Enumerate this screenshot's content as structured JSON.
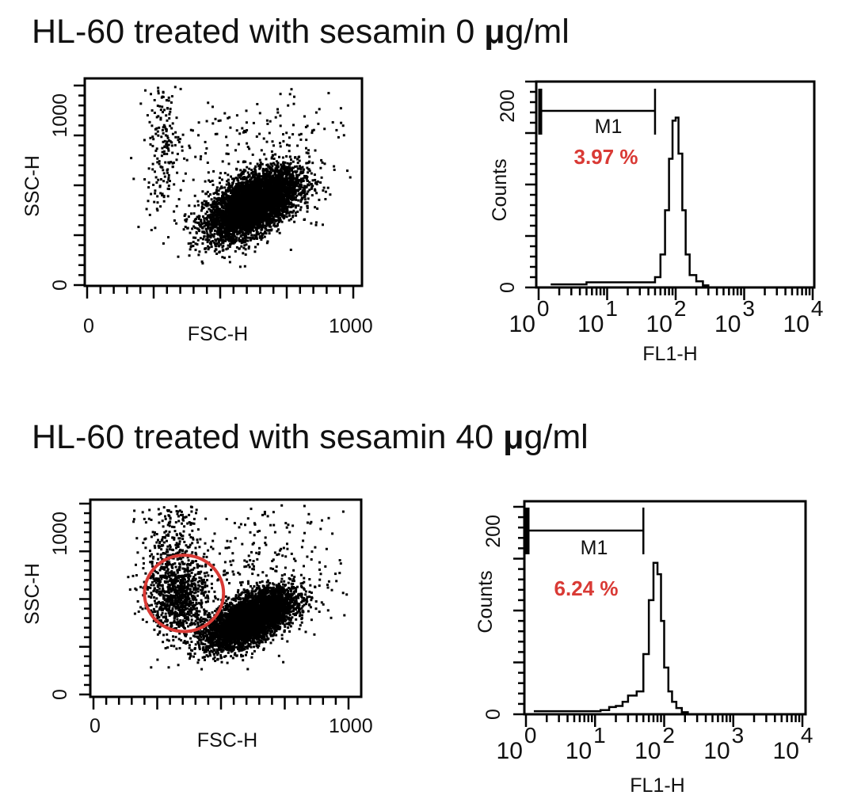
{
  "colors": {
    "ink": "#000000",
    "annotation": "#d93a35"
  },
  "rows": [
    {
      "title_prefix": "HL-60 treated with sesamin  0  ",
      "title_unit_mu": "μ",
      "title_unit_rest": "g/ml"
    },
    {
      "title_prefix": "HL-60 treated with sesamin  40  ",
      "title_unit_mu": "μ",
      "title_unit_rest": "g/ml"
    }
  ],
  "chart_data": [
    {
      "type": "scatter",
      "xlabel": "FSC-H",
      "ylabel": "SSC-H",
      "xlim": [
        0,
        1000
      ],
      "ylim": [
        0,
        1000
      ],
      "x_tick_labels": [
        "0",
        "1000"
      ],
      "y_tick_labels": [
        "0",
        "1000"
      ],
      "populations": [
        {
          "name_hidden": "main",
          "fsc_center": 620,
          "ssc_center": 410,
          "fsc_sd": 85,
          "ssc_sd": 85,
          "correlation": 0.55,
          "n": 5200
        },
        {
          "name_hidden": "debris",
          "fsc_center": 280,
          "ssc_center": 700,
          "fsc_sd": 35,
          "ssc_sd": 170,
          "correlation": 0,
          "n": 180
        },
        {
          "name_hidden": "scatter",
          "fsc_center": 650,
          "ssc_center": 650,
          "fsc_sd": 180,
          "ssc_sd": 200,
          "correlation": 0.2,
          "n": 260
        }
      ]
    },
    {
      "type": "line",
      "xlabel": "FL1-H",
      "ylabel": "Counts",
      "x_scale": "log",
      "xlim": [
        1,
        10000
      ],
      "ylim": [
        0,
        200
      ],
      "x_tick_exponents": [
        "0",
        "1",
        "2",
        "3",
        "4"
      ],
      "x_tick_base": "10",
      "y_tick_labels": [
        "0",
        "200"
      ],
      "x": [
        1.5,
        3,
        5,
        8,
        12,
        20,
        30,
        40,
        50,
        60,
        70,
        80,
        90,
        100,
        110,
        125,
        140,
        160,
        200,
        250,
        300,
        10000
      ],
      "y": [
        3,
        3,
        5,
        5,
        5,
        5,
        5,
        5,
        10,
        32,
        75,
        125,
        162,
        165,
        130,
        75,
        32,
        12,
        6,
        2,
        0,
        0
      ],
      "marker": {
        "label": "M1",
        "range": [
          1,
          50
        ],
        "percent": "3.97 %"
      }
    },
    {
      "type": "scatter",
      "xlabel": "FSC-H",
      "ylabel": "SSC-H",
      "xlim": [
        0,
        1000
      ],
      "ylim": [
        0,
        1000
      ],
      "x_tick_labels": [
        "0",
        "1000"
      ],
      "y_tick_labels": [
        "0",
        "1000"
      ],
      "populations": [
        {
          "fsc_center": 610,
          "ssc_center": 400,
          "fsc_sd": 85,
          "ssc_sd": 75,
          "correlation": 0.6,
          "n": 4800
        },
        {
          "fsc_center": 330,
          "ssc_center": 520,
          "fsc_sd": 55,
          "ssc_sd": 95,
          "correlation": 0,
          "n": 700
        },
        {
          "fsc_center": 300,
          "ssc_center": 700,
          "fsc_sd": 60,
          "ssc_sd": 200,
          "correlation": 0,
          "n": 450
        },
        {
          "fsc_center": 650,
          "ssc_center": 650,
          "fsc_sd": 170,
          "ssc_sd": 210,
          "correlation": 0.1,
          "n": 300
        }
      ],
      "annotation": {
        "shape": "circle",
        "fsc_center": 355,
        "ssc_center": 530,
        "fsc_radius": 155,
        "ssc_radius": 200
      }
    },
    {
      "type": "line",
      "xlabel": "FL1-H",
      "ylabel": "Counts",
      "x_scale": "log",
      "xlim": [
        1,
        10000
      ],
      "ylim": [
        0,
        200
      ],
      "x_tick_exponents": [
        "0",
        "1",
        "2",
        "3",
        "4"
      ],
      "x_tick_base": "10",
      "y_tick_labels": [
        "0",
        "200"
      ],
      "x": [
        1.3,
        3,
        6,
        9,
        12,
        16,
        20,
        25,
        30,
        35,
        40,
        50,
        60,
        70,
        80,
        90,
        100,
        115,
        130,
        150,
        180,
        220,
        10000
      ],
      "y": [
        3,
        3,
        3,
        3,
        4,
        7,
        8,
        12,
        18,
        18,
        22,
        58,
        110,
        146,
        135,
        90,
        45,
        22,
        12,
        6,
        2,
        0,
        0
      ],
      "marker": {
        "label": "M1",
        "range": [
          1,
          50
        ],
        "percent": "6.24 %"
      }
    }
  ]
}
